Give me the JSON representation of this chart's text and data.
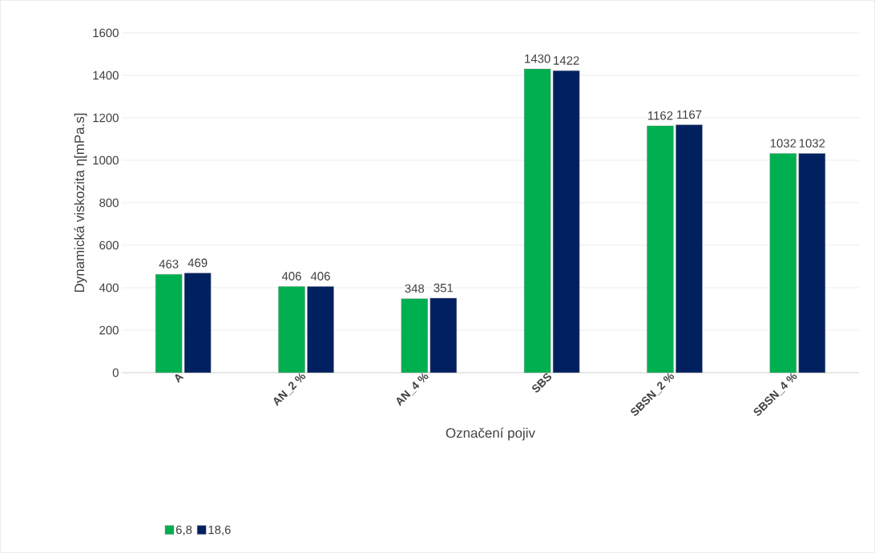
{
  "chart_data": {
    "type": "bar",
    "xlabel": "Označení pojiv",
    "ylabel": "Dynamická viskozita η[mPa.s]",
    "categories": [
      "A",
      "AN_2 %",
      "AN_4 %",
      "SBS",
      "SBSN_2 %",
      "SBSN_4 %"
    ],
    "series": [
      {
        "name": "6,8",
        "color": "#00b050",
        "values": [
          463,
          406,
          348,
          1430,
          1162,
          1032
        ]
      },
      {
        "name": "18,6",
        "color": "#002060",
        "values": [
          469,
          406,
          351,
          1422,
          1167,
          1032
        ]
      }
    ],
    "ylim": [
      0,
      1600
    ],
    "yticks": [
      0,
      200,
      400,
      600,
      800,
      1000,
      1200,
      1400,
      1600
    ],
    "grid": "y",
    "legend": "bottom left",
    "data_labels": true
  }
}
